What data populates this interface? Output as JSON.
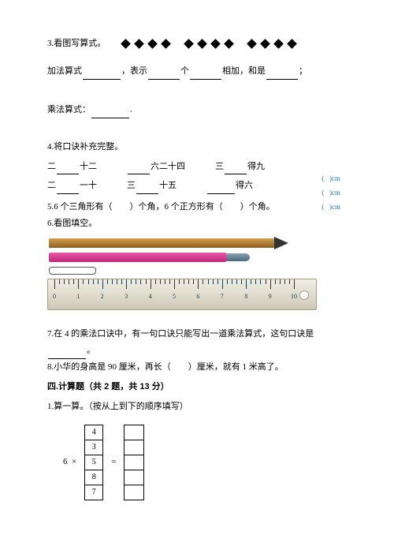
{
  "q3": {
    "title": "3.看图写算式。",
    "diamonds": {
      "groups": 3,
      "per_group": 4,
      "fill": "#000000"
    },
    "line1": {
      "prefix": "加法算式",
      "t1": "，表示",
      "t2": "个",
      "t3": "相加，和是",
      "t4": "；"
    },
    "line2": {
      "prefix": "乘法算式：",
      "suffix": "."
    }
  },
  "q4": {
    "title": "4.将口诀补充完整。",
    "row1": {
      "a": "十二",
      "b": "六二十四",
      "c_pre": "三",
      "c_suf": "得九",
      "pre": "二"
    },
    "row2": {
      "a_pre": "二",
      "a_suf": "一十",
      "b_pre": "三",
      "b_suf": "十五",
      "c_suf": "得六"
    }
  },
  "q5": "5.6 个三角形有（　　）个角，6 个正方形有（　　）个角。",
  "q6": "6.看图填空。",
  "ruler": {
    "pencil_color_top": "#d4a04f",
    "pencil_color_bottom": "#8a6020",
    "pen_color_top": "#e85aa8",
    "pen_color_bottom": "#c02680",
    "pen_cap_top": "#88a5b8",
    "pen_cap_bottom": "#4a6878",
    "ruler_bg_top": "#f0eee5",
    "ruler_bg_bottom": "#cfc9b8",
    "ruler_border": "#a89c80",
    "tick_color": "#223a4a",
    "label_color": "#2877b8",
    "tick_labels": [
      "0",
      "1",
      "2",
      "3",
      "4",
      "5",
      "6",
      "7",
      "8",
      "9",
      "10"
    ],
    "cm_label": "cm"
  },
  "q7": {
    "text": "7.在 4 的乘法口诀中，有一句口诀只能写出一道乘法算式，这句口诀是",
    "suffix": "。"
  },
  "q8": "8.小华的身高是 90 厘米，再长（　　）厘米，就有 1 米高了。",
  "section4": "四.计算题（共 2 题，共 13 分）",
  "calc1": {
    "title": "1.算一算。（按从上到下的顺序填写）",
    "multiplier": "6  ×",
    "equals": "=",
    "values": [
      "4",
      "3",
      "5",
      "8",
      "7"
    ]
  }
}
